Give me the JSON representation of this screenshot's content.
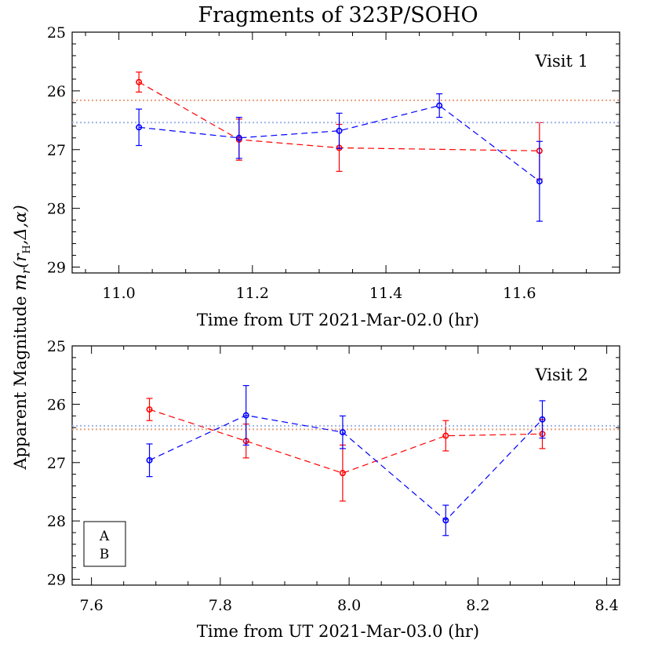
{
  "title": "Fragments of 323P/SOHO",
  "ylabel_prefix": "Apparent Magnitude ",
  "ylabel_symbol": "m",
  "ylabel_sub_r": "r",
  "ylabel_args_a": "(r",
  "ylabel_sub_H": "H",
  "ylabel_args_b": ",Δ,α)",
  "colors": {
    "A": "#ff0000",
    "B": "#0000ff",
    "A_mean": "#e8a080",
    "B_mean": "#a0b4e8"
  },
  "legend": {
    "items": [
      {
        "label": "A",
        "color": "#ff0000"
      },
      {
        "label": "B",
        "color": "#0000ff"
      }
    ]
  },
  "chart_data": [
    {
      "type": "scatter",
      "annotation": "Visit 1",
      "xlabel": "Time from UT 2021-Mar-02.0 (hr)",
      "xlim": [
        10.93,
        11.75
      ],
      "ylim": [
        25,
        29.1
      ],
      "y_inverted": true,
      "xticks": [
        "11.0",
        "11.2",
        "11.4",
        "11.6"
      ],
      "yticks": [
        "25",
        "26",
        "27",
        "28",
        "29"
      ],
      "series": [
        {
          "name": "A",
          "x": [
            11.03,
            11.18,
            11.33,
            11.63
          ],
          "y": [
            25.85,
            26.83,
            26.97,
            27.02
          ],
          "err": [
            0.17,
            0.35,
            0.4,
            0.48
          ],
          "mean": 26.16
        },
        {
          "name": "B",
          "x": [
            11.03,
            11.18,
            11.33,
            11.48,
            11.63
          ],
          "y": [
            26.62,
            26.8,
            26.68,
            26.25,
            27.54
          ],
          "err": [
            0.31,
            0.35,
            0.3,
            0.2,
            0.68
          ],
          "mean": 26.54
        }
      ]
    },
    {
      "type": "scatter",
      "annotation": "Visit 2",
      "xlabel": "Time from UT 2021-Mar-03.0 (hr)",
      "xlim": [
        7.57,
        8.42
      ],
      "ylim": [
        25,
        29.1
      ],
      "y_inverted": true,
      "xticks": [
        "7.6",
        "7.8",
        "8.0",
        "8.2",
        "8.4"
      ],
      "yticks": [
        "25",
        "26",
        "27",
        "28",
        "29"
      ],
      "series": [
        {
          "name": "A",
          "x": [
            7.69,
            7.84,
            7.99,
            8.15,
            8.3
          ],
          "y": [
            26.09,
            26.63,
            27.18,
            26.54,
            26.51
          ],
          "err": [
            0.19,
            0.29,
            0.48,
            0.26,
            0.25
          ],
          "mean": 26.43
        },
        {
          "name": "B",
          "x": [
            7.69,
            7.84,
            7.99,
            8.15,
            8.3
          ],
          "y": [
            26.96,
            26.19,
            26.48,
            27.99,
            26.26
          ],
          "err": [
            0.28,
            0.51,
            0.28,
            0.26,
            0.32
          ],
          "mean": 26.37
        }
      ]
    }
  ]
}
